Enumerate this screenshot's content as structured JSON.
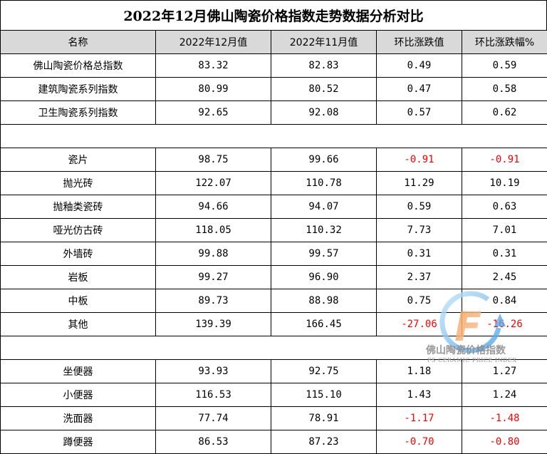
{
  "title": "2022年12月佛山陶瓷价格指数走势数据分析对比",
  "chart_data": {
    "type": "table",
    "title": "2022年12月佛山陶瓷价格指数走势数据分析对比",
    "columns": [
      "名称",
      "2022年12月值",
      "2022年11月值",
      "环比涨跌值",
      "环比涨跌幅%"
    ],
    "groups": [
      {
        "rows": [
          [
            "佛山陶瓷价格总指数",
            "83.32",
            "82.83",
            "0.49",
            "0.59"
          ],
          [
            "建筑陶瓷系列指数",
            "80.99",
            "80.52",
            "0.47",
            "0.58"
          ],
          [
            "卫生陶瓷系列指数",
            "92.65",
            "92.08",
            "0.57",
            "0.62"
          ]
        ]
      },
      {
        "rows": [
          [
            "瓷片",
            "98.75",
            "99.66",
            "-0.91",
            "-0.91"
          ],
          [
            "抛光砖",
            "122.07",
            "110.78",
            "11.29",
            "10.19"
          ],
          [
            "抛釉类瓷砖",
            "94.66",
            "94.07",
            "0.59",
            "0.63"
          ],
          [
            "哑光仿古砖",
            "118.05",
            "110.32",
            "7.73",
            "7.01"
          ],
          [
            "外墙砖",
            "99.88",
            "99.57",
            "0.31",
            "0.31"
          ],
          [
            "岩板",
            "99.27",
            "96.90",
            "2.37",
            "2.45"
          ],
          [
            "中板",
            "89.73",
            "88.98",
            "0.75",
            "0.84"
          ],
          [
            "其他",
            "139.39",
            "166.45",
            "-27.06",
            "-16.26"
          ]
        ]
      },
      {
        "rows": [
          [
            "坐便器",
            "93.93",
            "92.75",
            "1.18",
            "1.27"
          ],
          [
            "小便器",
            "116.53",
            "115.10",
            "1.43",
            "1.24"
          ],
          [
            "洗面器",
            "77.74",
            "78.91",
            "-1.17",
            "-1.48"
          ],
          [
            "蹲便器",
            "86.53",
            "87.23",
            "-0.70",
            "-0.80"
          ]
        ]
      }
    ],
    "colors": {
      "header_bg": "#d9d9d9",
      "negative": "#ff0000",
      "text": "#000000"
    }
  },
  "watermark": {
    "logo_letter": "F",
    "name": "佛山陶瓷价格指数",
    "subtitle": "FS CERAMIC PRICE INDEX"
  }
}
